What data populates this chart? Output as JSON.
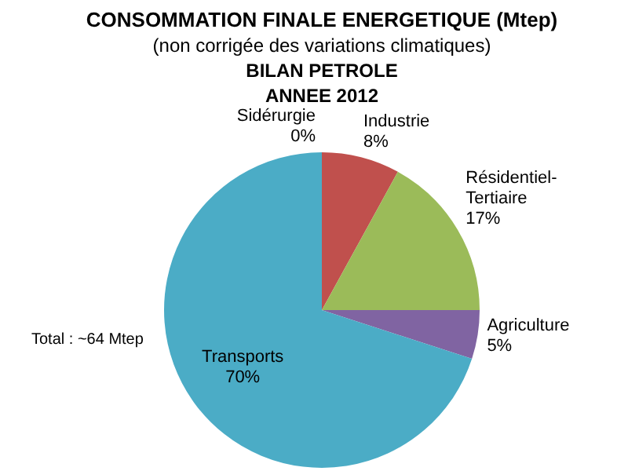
{
  "chart_data": {
    "type": "pie",
    "title": "CONSOMMATION FINALE ENERGETIQUE (Mtep)",
    "subtitle": "(non corrigée des variations climatiques)",
    "annotations": [
      "BILAN PETROLE",
      "ANNEE 2012",
      "Total : ~64 Mtep"
    ],
    "categories": [
      "Sidérurgie",
      "Industrie",
      "Résidentiel-Tertiaire",
      "Agriculture",
      "Transports"
    ],
    "values": [
      0,
      8,
      17,
      5,
      70
    ],
    "value_labels": [
      "0%",
      "8%",
      "17%",
      "5%",
      "70%"
    ],
    "colors": [
      "#4f81bd",
      "#c0504d",
      "#9bbb59",
      "#8064a2",
      "#4bacc6"
    ],
    "legend": false
  }
}
